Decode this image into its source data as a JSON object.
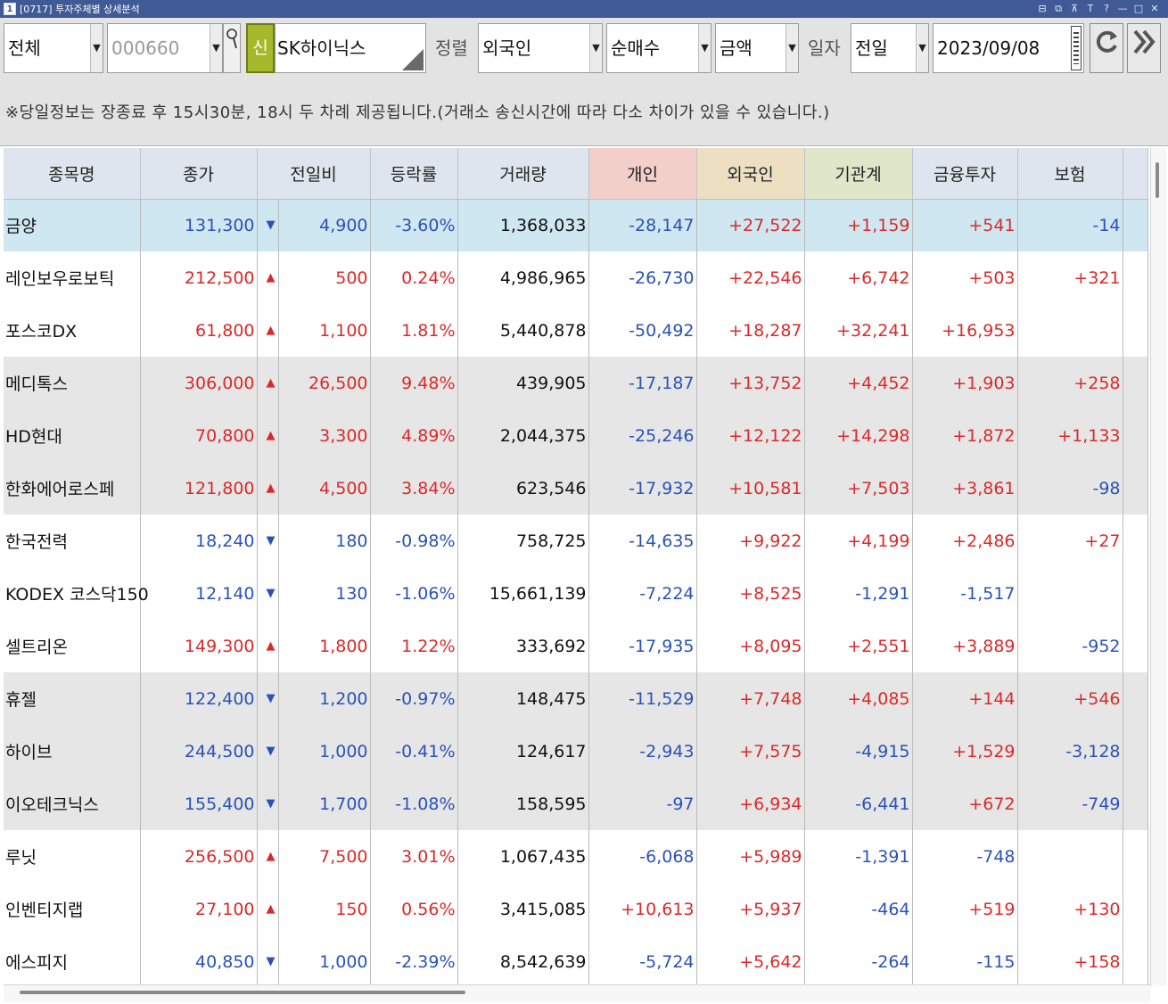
{
  "window": {
    "number": "1",
    "title": "[0717] 투자주체별 상세분석",
    "controls": [
      "⊟",
      "⧉",
      "⊼",
      "T",
      "?",
      "—",
      "□",
      "✕"
    ]
  },
  "toolbar": {
    "market": "전체",
    "code": "000660",
    "new_badge": "신",
    "stock_name": "SK하이닉스",
    "sort_label": "정렬",
    "sort_by": "외국인",
    "trade_type": "순매수",
    "unit": "금액",
    "date_label": "일자",
    "date_mode": "전일",
    "date": "2023/09/08"
  },
  "notice": "※당일정보는 장종료 후 15시30분, 18시 두 차례 제공됩니다.(거래소 송신시간에 따라 다소 차이가 있을 수 있습니다.)",
  "table": {
    "headers": {
      "name": "종목명",
      "close": "종가",
      "change": "전일비",
      "rate": "등락률",
      "volume": "거래량",
      "individual": "개인",
      "foreign": "외국인",
      "institution": "기관계",
      "fin_invest": "금융투자",
      "insurance": "보험"
    },
    "rows": [
      {
        "name": "금양",
        "close": "131,300",
        "dir": "down",
        "arrow": "▼",
        "change": "4,900",
        "rate": "-3.60%",
        "volume": "1,368,033",
        "individual": "-28,147",
        "foreign": "+27,522",
        "institution": "+1,159",
        "fin_invest": "+541",
        "insurance": "-14"
      },
      {
        "name": "레인보우로보틱",
        "close": "212,500",
        "dir": "up",
        "arrow": "▲",
        "change": "500",
        "rate": "0.24%",
        "volume": "4,986,965",
        "individual": "-26,730",
        "foreign": "+22,546",
        "institution": "+6,742",
        "fin_invest": "+503",
        "insurance": "+321"
      },
      {
        "name": "포스코DX",
        "close": "61,800",
        "dir": "up",
        "arrow": "▲",
        "change": "1,100",
        "rate": "1.81%",
        "volume": "5,440,878",
        "individual": "-50,492",
        "foreign": "+18,287",
        "institution": "+32,241",
        "fin_invest": "+16,953",
        "insurance": ""
      },
      {
        "name": "메디톡스",
        "close": "306,000",
        "dir": "up",
        "arrow": "▲",
        "change": "26,500",
        "rate": "9.48%",
        "volume": "439,905",
        "individual": "-17,187",
        "foreign": "+13,752",
        "institution": "+4,452",
        "fin_invest": "+1,903",
        "insurance": "+258"
      },
      {
        "name": "HD현대",
        "close": "70,800",
        "dir": "up",
        "arrow": "▲",
        "change": "3,300",
        "rate": "4.89%",
        "volume": "2,044,375",
        "individual": "-25,246",
        "foreign": "+12,122",
        "institution": "+14,298",
        "fin_invest": "+1,872",
        "insurance": "+1,133"
      },
      {
        "name": "한화에어로스페",
        "close": "121,800",
        "dir": "up",
        "arrow": "▲",
        "change": "4,500",
        "rate": "3.84%",
        "volume": "623,546",
        "individual": "-17,932",
        "foreign": "+10,581",
        "institution": "+7,503",
        "fin_invest": "+3,861",
        "insurance": "-98"
      },
      {
        "name": "한국전력",
        "close": "18,240",
        "dir": "down",
        "arrow": "▼",
        "change": "180",
        "rate": "-0.98%",
        "volume": "758,725",
        "individual": "-14,635",
        "foreign": "+9,922",
        "institution": "+4,199",
        "fin_invest": "+2,486",
        "insurance": "+27"
      },
      {
        "name": "KODEX 코스닥150",
        "close": "12,140",
        "dir": "down",
        "arrow": "▼",
        "change": "130",
        "rate": "-1.06%",
        "volume": "15,661,139",
        "individual": "-7,224",
        "foreign": "+8,525",
        "institution": "-1,291",
        "fin_invest": "-1,517",
        "insurance": ""
      },
      {
        "name": "셀트리온",
        "close": "149,300",
        "dir": "up",
        "arrow": "▲",
        "change": "1,800",
        "rate": "1.22%",
        "volume": "333,692",
        "individual": "-17,935",
        "foreign": "+8,095",
        "institution": "+2,551",
        "fin_invest": "+3,889",
        "insurance": "-952"
      },
      {
        "name": "휴젤",
        "close": "122,400",
        "dir": "down",
        "arrow": "▼",
        "change": "1,200",
        "rate": "-0.97%",
        "volume": "148,475",
        "individual": "-11,529",
        "foreign": "+7,748",
        "institution": "+4,085",
        "fin_invest": "+144",
        "insurance": "+546"
      },
      {
        "name": "하이브",
        "close": "244,500",
        "dir": "down",
        "arrow": "▼",
        "change": "1,000",
        "rate": "-0.41%",
        "volume": "124,617",
        "individual": "-2,943",
        "foreign": "+7,575",
        "institution": "-4,915",
        "fin_invest": "+1,529",
        "insurance": "-3,128"
      },
      {
        "name": "이오테크닉스",
        "close": "155,400",
        "dir": "down",
        "arrow": "▼",
        "change": "1,700",
        "rate": "-1.08%",
        "volume": "158,595",
        "individual": "-97",
        "foreign": "+6,934",
        "institution": "-6,441",
        "fin_invest": "+672",
        "insurance": "-749"
      },
      {
        "name": "루닛",
        "close": "256,500",
        "dir": "up",
        "arrow": "▲",
        "change": "7,500",
        "rate": "3.01%",
        "volume": "1,067,435",
        "individual": "-6,068",
        "foreign": "+5,989",
        "institution": "-1,391",
        "fin_invest": "-748",
        "insurance": ""
      },
      {
        "name": "인벤티지랩",
        "close": "27,100",
        "dir": "up",
        "arrow": "▲",
        "change": "150",
        "rate": "0.56%",
        "volume": "3,415,085",
        "individual": "+10,613",
        "foreign": "+5,937",
        "institution": "-464",
        "fin_invest": "+519",
        "insurance": "+130"
      },
      {
        "name": "에스피지",
        "close": "40,850",
        "dir": "down",
        "arrow": "▼",
        "change": "1,000",
        "rate": "-2.39%",
        "volume": "8,542,639",
        "individual": "-5,724",
        "foreign": "+5,642",
        "institution": "-264",
        "fin_invest": "-115",
        "insurance": "+158"
      }
    ]
  },
  "colors": {
    "up": "#d92a2a",
    "down": "#2a52b8",
    "selected_row": "#cfe7f1",
    "shaded_row": "#e6e6e6",
    "header_individual": "#f3cfca",
    "header_foreign": "#eddfc2",
    "header_institution": "#dfe6c9",
    "title_bar": "#3f5a94",
    "new_badge": "#a6b82c"
  },
  "icons": {
    "search": "magnifier-icon",
    "calendar": "calendar-icon",
    "refresh": "refresh-icon",
    "next": "double-chevron-right-icon"
  }
}
